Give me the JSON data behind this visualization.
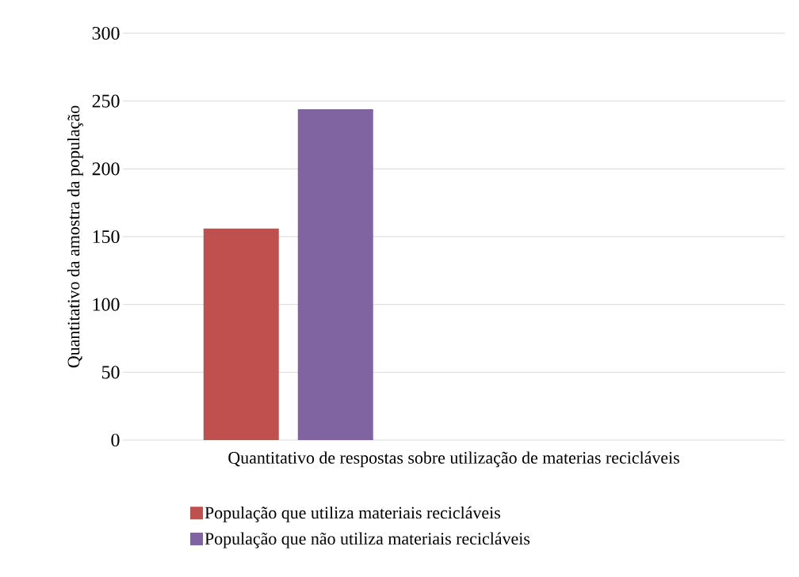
{
  "chart_data": {
    "type": "bar",
    "xlabel": "Quantitativo de respostas sobre utilização de materias recicláveis",
    "ylabel": "Quantitativo da amostra da população",
    "categories": [
      null,
      null
    ],
    "series": [
      {
        "name": "População que utiliza materiais recicláveis",
        "color": "#c0504d",
        "values": [
          156,
          null
        ]
      },
      {
        "name": "População que não utiliza materiais recicláveis",
        "color": "#8064a2",
        "values": [
          244,
          null
        ]
      }
    ],
    "ylim": [
      0,
      300
    ],
    "yticks": [
      0,
      50,
      100,
      150,
      200,
      250,
      300
    ],
    "grid": "y",
    "legend": "bottom"
  }
}
